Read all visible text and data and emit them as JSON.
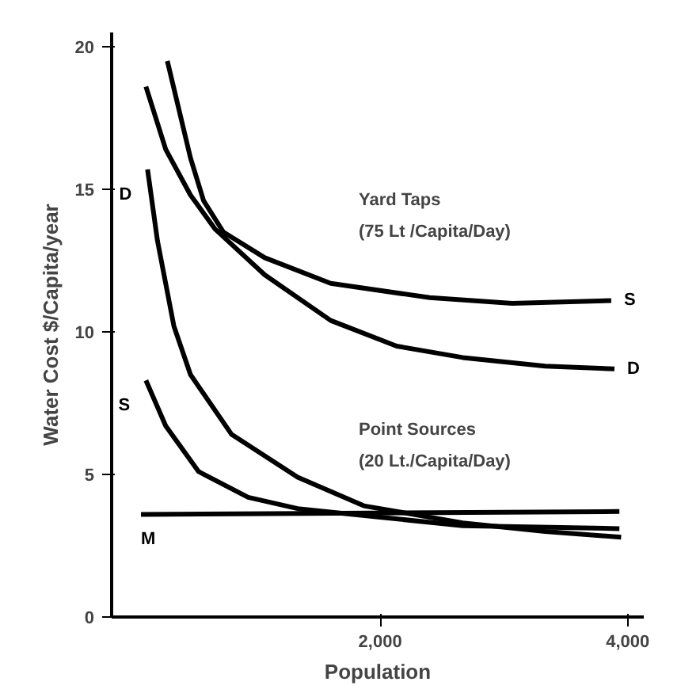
{
  "chart_data": {
    "type": "line",
    "xlabel": "Population",
    "ylabel": "Water Cost $/Capita/year",
    "xlim": [
      -170,
      4130
    ],
    "ylim": [
      0,
      20.5
    ],
    "xticks": [
      {
        "value": 2000,
        "label": "2,000"
      },
      {
        "value": 4000,
        "label": "4,000"
      }
    ],
    "yticks": [
      0,
      5,
      10,
      15,
      20
    ],
    "grid": false,
    "line_style": "solid",
    "series": [
      {
        "name": "S",
        "color": "#000000",
        "x": [
          280,
          467,
          573,
          733,
          1067,
          1600,
          2400,
          3067,
          3867
        ],
        "values": [
          19.5,
          16.1,
          14.6,
          13.5,
          12.6,
          11.7,
          11.2,
          11.0,
          11.1
        ]
      },
      {
        "name": "D",
        "color": "#000000",
        "x": [
          107,
          267,
          467,
          667,
          1067,
          1600,
          2133,
          2667,
          3333,
          3893
        ],
        "values": [
          18.6,
          16.4,
          14.8,
          13.6,
          12.0,
          10.4,
          9.5,
          9.1,
          8.8,
          8.7
        ]
      },
      {
        "name": "D",
        "color": "#000000",
        "x": [
          120,
          200,
          333,
          467,
          800,
          1333,
          1867,
          2667,
          3333,
          3947
        ],
        "values": [
          15.7,
          13.2,
          10.2,
          8.5,
          6.4,
          4.9,
          3.9,
          3.3,
          3.0,
          2.8
        ]
      },
      {
        "name": "S",
        "color": "#000000",
        "x": [
          107,
          267,
          533,
          933,
          1333,
          2000,
          2667,
          3933
        ],
        "values": [
          8.3,
          6.7,
          5.1,
          4.2,
          3.8,
          3.5,
          3.2,
          3.1
        ]
      },
      {
        "name": "M",
        "color": "#000000",
        "x": [
          67,
          3933
        ],
        "values": [
          3.6,
          3.7
        ]
      }
    ],
    "annotations": [
      "Yard Taps",
      "(75 Lt /Capita/Day)",
      "Point Sources",
      "(20 Lt./Capita/Day)"
    ]
  }
}
